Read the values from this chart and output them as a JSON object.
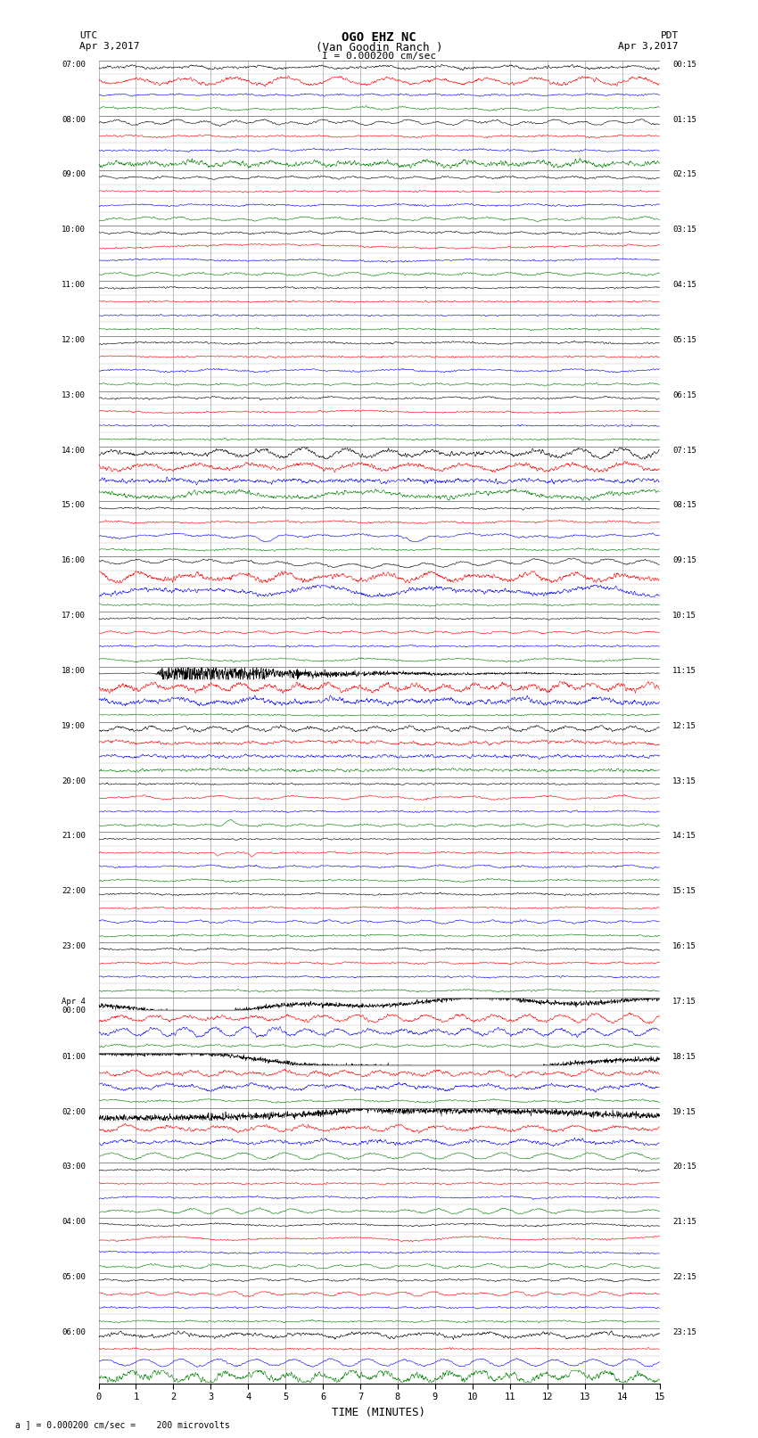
{
  "title_line1": "OGO EHZ NC",
  "title_line2": "(Van Goodin Ranch )",
  "title_line3": "I = 0.000200 cm/sec",
  "left_header_line1": "UTC",
  "left_header_line2": "Apr 3,2017",
  "right_header_line1": "PDT",
  "right_header_line2": "Apr 3,2017",
  "xlabel": "TIME (MINUTES)",
  "footnote": "a ] = 0.000200 cm/sec =    200 microvolts",
  "background_color": "#ffffff",
  "grid_color": "#888888",
  "trace_colors": [
    "black",
    "red",
    "blue",
    "green"
  ],
  "utc_labels": [
    "07:00",
    "08:00",
    "09:00",
    "10:00",
    "11:00",
    "12:00",
    "13:00",
    "14:00",
    "15:00",
    "16:00",
    "17:00",
    "18:00",
    "19:00",
    "20:00",
    "21:00",
    "22:00",
    "23:00",
    "Apr 4\n00:00",
    "01:00",
    "02:00",
    "03:00",
    "04:00",
    "05:00",
    "06:00"
  ],
  "pdt_labels": [
    "00:15",
    "01:15",
    "02:15",
    "03:15",
    "04:15",
    "05:15",
    "06:15",
    "07:15",
    "08:15",
    "09:15",
    "10:15",
    "11:15",
    "12:15",
    "13:15",
    "14:15",
    "15:15",
    "16:15",
    "17:15",
    "18:15",
    "19:15",
    "20:15",
    "21:15",
    "22:15",
    "23:15"
  ],
  "n_hours": 24,
  "traces_per_hour": 4,
  "xlim": [
    0,
    15
  ],
  "seed": 12345
}
